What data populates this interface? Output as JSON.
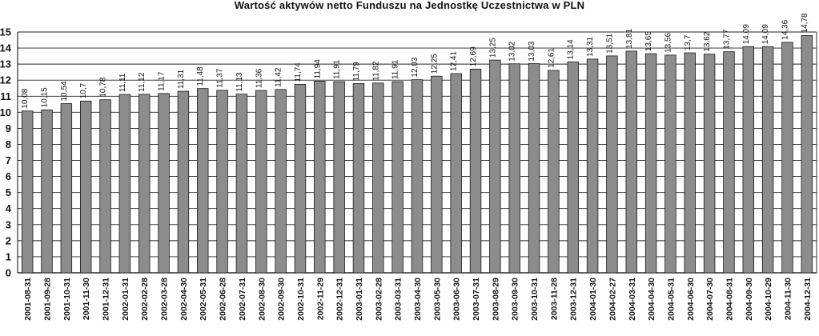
{
  "chart_data": {
    "type": "bar",
    "title": "Wartość aktywów netto Funduszu na Jednostkę Uczestnictwa w PLN",
    "xlabel": "",
    "ylabel": "",
    "ylim": [
      0,
      15
    ],
    "yticks": [
      0,
      1,
      2,
      3,
      4,
      5,
      6,
      7,
      8,
      9,
      10,
      11,
      12,
      13,
      14,
      15
    ],
    "grid": true,
    "bar_color": "#8c8c8c",
    "categories": [
      "2001-08-31",
      "2001-09-28",
      "2001-10-31",
      "2001-11-30",
      "2001-12-31",
      "2002-01-31",
      "2002-02-28",
      "2002-03-28",
      "2002-04-30",
      "2002-05-31",
      "2002-06-28",
      "2002-07-31",
      "2002-08-30",
      "2002-09-30",
      "2002-10-31",
      "2002-11-29",
      "2002-12-31",
      "2003-01-31",
      "2003-02-28",
      "2003-03-31",
      "2003-04-30",
      "2003-05-30",
      "2003-06-30",
      "2003-07-31",
      "2003-08-29",
      "2003-09-30",
      "2003-10-31",
      "2003-11-28",
      "2003-12-31",
      "2004-01-30",
      "2004-02-27",
      "2004-03-31",
      "2004-04-30",
      "2004-05-31",
      "2004-06-30",
      "2004-07-30",
      "2004-08-31",
      "2004-09-30",
      "2004-10-29",
      "2004-11-30",
      "2004-12-31"
    ],
    "values": [
      10.08,
      10.15,
      10.54,
      10.7,
      10.78,
      11.11,
      11.12,
      11.17,
      11.31,
      11.48,
      11.37,
      11.13,
      11.36,
      11.42,
      11.74,
      11.94,
      11.91,
      11.79,
      11.82,
      11.91,
      12.03,
      12.25,
      12.41,
      12.69,
      13.25,
      13.02,
      13.03,
      12.61,
      13.14,
      13.31,
      13.51,
      13.81,
      13.65,
      13.56,
      13.7,
      13.62,
      13.77,
      14.09,
      14.09,
      14.36,
      14.78
    ],
    "value_labels": [
      "10,08",
      "10,15",
      "10,54",
      "10,7",
      "10,78",
      "11,11",
      "11,12",
      "11,17",
      "11,31",
      "11,48",
      "11,37",
      "11,13",
      "11,36",
      "11,42",
      "11,74",
      "11,94",
      "11,91",
      "11,79",
      "11,82",
      "11,91",
      "12,03",
      "12,25",
      "12,41",
      "12,69",
      "13,25",
      "13,02",
      "13,03",
      "12,61",
      "13,14",
      "13,31",
      "13,51",
      "13,81",
      "13,65",
      "13,56",
      "13,7",
      "13,62",
      "13,77",
      "14,09",
      "14,09",
      "14,36",
      "14,78"
    ]
  }
}
